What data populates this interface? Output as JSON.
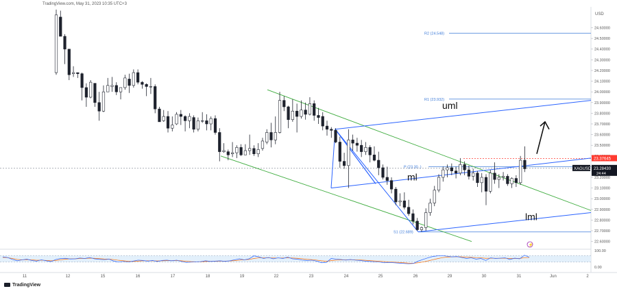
{
  "header": {
    "source": "TradingView.com, May 31, 2023 10:35 UTC+3"
  },
  "brand": {
    "label": "TradingView",
    "icon": "tradingview-logo-icon"
  },
  "colors": {
    "candle": "#1e222d",
    "channel": "#3cab3c",
    "pitchfork": "#2962ff",
    "pivot": "#3d7bd9",
    "resistance": "#ff3b30",
    "price_label_bg": "#131722",
    "resistance_label_bg": "#ff3b30",
    "rsi_line": "#2962ff",
    "rsi_signal": "#ff6d00",
    "rsi_band": "#e3f0fb"
  },
  "chart_data": {
    "type": "candlestick",
    "symbol": "XAGUSD",
    "currency": "USD",
    "y_ticks": [
      "24.60000",
      "24.50000",
      "24.40000",
      "24.30000",
      "24.20000",
      "24.10000",
      "24.00000",
      "23.90000",
      "23.80000",
      "23.70000",
      "23.60000",
      "23.50000",
      "23.40000",
      "23.30000",
      "23.20000",
      "23.10000",
      "23.00000",
      "22.90000",
      "22.80000",
      "22.70000",
      "22.60000"
    ],
    "ylim": [
      22.54,
      24.77
    ],
    "x_ticks": [
      "11",
      "12",
      "15",
      "16",
      "17",
      "18",
      "19",
      "22",
      "23",
      "24",
      "25",
      "26",
      "29",
      "30",
      "31",
      "Jun",
      "2"
    ],
    "current_price": {
      "label": "XAGUSD",
      "value": "23.28430",
      "countdown": "24:44",
      "numeric": 23.2843
    },
    "resistance_price": {
      "value": "23.37645",
      "numeric": 23.37645
    },
    "pivots": [
      {
        "label": "R2 (24.548)",
        "value": 24.548
      },
      {
        "label": "R1 (23.932)",
        "value": 23.932
      },
      {
        "label": "P (23.30..)",
        "value": 23.3
      },
      {
        "label": "S1 (22.689)",
        "value": 22.689
      }
    ],
    "annotations": {
      "upper_median": "uml",
      "median": "ml",
      "lower_median": "lml"
    },
    "candles": [
      [
        0,
        24.18,
        24.77,
        24.16,
        24.72
      ],
      [
        1,
        24.7,
        24.76,
        24.52,
        24.52
      ],
      [
        2,
        24.52,
        24.54,
        24.26,
        24.4
      ],
      [
        3,
        24.4,
        24.4,
        24.11,
        24.16
      ],
      [
        4,
        24.17,
        24.24,
        24.14,
        24.18
      ],
      [
        5,
        24.18,
        24.18,
        24.13,
        24.17
      ],
      [
        6,
        24.17,
        24.18,
        23.92,
        24.04
      ],
      [
        7,
        24.04,
        24.08,
        23.86,
        23.95
      ],
      [
        8,
        23.95,
        24.11,
        23.94,
        24.09
      ],
      [
        9,
        24.08,
        24.08,
        23.86,
        23.9
      ],
      [
        10,
        23.9,
        24.0,
        23.73,
        23.82
      ],
      [
        11,
        23.82,
        24.06,
        23.81,
        24.0
      ],
      [
        12,
        24.0,
        24.13,
        24.0,
        24.06
      ],
      [
        13,
        24.05,
        24.14,
        24.0,
        24.06
      ],
      [
        14,
        24.06,
        24.09,
        23.97,
        24.0
      ],
      [
        15,
        24.0,
        24.04,
        23.93,
        24.04
      ],
      [
        16,
        24.04,
        24.16,
        24.02,
        24.13
      ],
      [
        17,
        24.12,
        24.17,
        23.99,
        24.06
      ],
      [
        18,
        24.06,
        24.21,
        24.04,
        24.18
      ],
      [
        19,
        24.18,
        24.21,
        24.07,
        24.09
      ],
      [
        20,
        24.09,
        24.1,
        24.03,
        24.07
      ],
      [
        21,
        24.07,
        24.08,
        23.96,
        24.05
      ],
      [
        22,
        24.05,
        24.13,
        23.98,
        24.05
      ],
      [
        23,
        24.05,
        24.07,
        23.8,
        23.84
      ],
      [
        24,
        23.84,
        23.86,
        23.72,
        23.72
      ],
      [
        25,
        23.73,
        23.83,
        23.72,
        23.77
      ],
      [
        26,
        23.77,
        23.82,
        23.62,
        23.66
      ],
      [
        27,
        23.66,
        23.77,
        23.63,
        23.69
      ],
      [
        28,
        23.7,
        23.81,
        23.69,
        23.79
      ],
      [
        29,
        23.79,
        23.83,
        23.69,
        23.77
      ],
      [
        30,
        23.77,
        23.78,
        23.63,
        23.73
      ],
      [
        31,
        23.73,
        23.8,
        23.66,
        23.77
      ],
      [
        32,
        23.76,
        23.78,
        23.62,
        23.65
      ],
      [
        33,
        23.65,
        23.76,
        23.63,
        23.73
      ],
      [
        34,
        23.73,
        23.81,
        23.71,
        23.73
      ],
      [
        35,
        23.73,
        23.79,
        23.64,
        23.7
      ],
      [
        36,
        23.7,
        23.77,
        23.64,
        23.75
      ],
      [
        37,
        23.75,
        23.78,
        23.6,
        23.62
      ],
      [
        38,
        23.62,
        23.66,
        23.35,
        23.44
      ],
      [
        39,
        23.44,
        23.52,
        23.43,
        23.45
      ],
      [
        40,
        23.44,
        23.46,
        23.36,
        23.41
      ],
      [
        41,
        23.42,
        23.53,
        23.39,
        23.43
      ],
      [
        42,
        23.43,
        23.5,
        23.38,
        23.48
      ],
      [
        43,
        23.48,
        23.51,
        23.4,
        23.41
      ],
      [
        44,
        23.41,
        23.51,
        23.41,
        23.45
      ],
      [
        45,
        23.45,
        23.6,
        23.41,
        23.47
      ],
      [
        46,
        23.47,
        23.5,
        23.4,
        23.42
      ],
      [
        47,
        23.42,
        23.52,
        23.39,
        23.46
      ],
      [
        48,
        23.47,
        23.57,
        23.45,
        23.54
      ],
      [
        49,
        23.53,
        23.65,
        23.51,
        23.62
      ],
      [
        50,
        23.62,
        23.71,
        23.48,
        23.55
      ],
      [
        51,
        23.55,
        23.77,
        23.51,
        23.62
      ],
      [
        52,
        23.62,
        24.0,
        23.61,
        23.92
      ],
      [
        53,
        23.92,
        23.96,
        23.82,
        23.86
      ],
      [
        54,
        23.86,
        23.87,
        23.66,
        23.74
      ],
      [
        55,
        23.74,
        23.93,
        23.72,
        23.82
      ],
      [
        56,
        23.82,
        23.89,
        23.62,
        23.77
      ],
      [
        57,
        23.77,
        23.92,
        23.75,
        23.83
      ],
      [
        58,
        23.83,
        23.9,
        23.74,
        23.79
      ],
      [
        59,
        23.79,
        23.95,
        23.78,
        23.89
      ],
      [
        60,
        23.89,
        23.92,
        23.73,
        23.78
      ],
      [
        61,
        23.78,
        23.85,
        23.7,
        23.76
      ],
      [
        62,
        23.77,
        23.81,
        23.64,
        23.68
      ],
      [
        63,
        23.68,
        23.73,
        23.59,
        23.65
      ],
      [
        64,
        23.65,
        23.67,
        23.57,
        23.64
      ],
      [
        65,
        23.64,
        23.66,
        23.52,
        23.53
      ],
      [
        66,
        23.53,
        23.58,
        23.29,
        23.35
      ],
      [
        67,
        23.35,
        23.43,
        23.28,
        23.31
      ],
      [
        68,
        23.31,
        23.65,
        23.1,
        23.55
      ],
      [
        69,
        23.55,
        23.6,
        23.45,
        23.52
      ],
      [
        70,
        23.52,
        23.57,
        23.44,
        23.5
      ],
      [
        71,
        23.5,
        23.55,
        23.39,
        23.44
      ],
      [
        72,
        23.44,
        23.53,
        23.41,
        23.48
      ],
      [
        73,
        23.48,
        23.5,
        23.34,
        23.41
      ],
      [
        74,
        23.41,
        23.49,
        23.35,
        23.36
      ],
      [
        75,
        23.36,
        23.44,
        23.22,
        23.29
      ],
      [
        76,
        23.29,
        23.32,
        23.18,
        23.2
      ],
      [
        77,
        23.2,
        23.3,
        23.13,
        23.17
      ],
      [
        78,
        23.17,
        23.2,
        23.05,
        23.09
      ],
      [
        79,
        23.09,
        23.11,
        22.94,
        22.97
      ],
      [
        80,
        22.97,
        23.05,
        22.93,
        22.98
      ],
      [
        81,
        22.98,
        23.06,
        22.9,
        22.92
      ],
      [
        82,
        22.92,
        22.99,
        22.84,
        22.86
      ],
      [
        83,
        22.86,
        22.9,
        22.76,
        22.79
      ],
      [
        84,
        22.79,
        22.82,
        22.7,
        22.71
      ],
      [
        85,
        22.71,
        22.74,
        22.69,
        22.73
      ],
      [
        86,
        22.73,
        22.91,
        22.7,
        22.87
      ],
      [
        87,
        22.87,
        23.0,
        22.84,
        22.96
      ],
      [
        88,
        22.96,
        23.12,
        22.93,
        23.08
      ],
      [
        89,
        23.08,
        23.23,
        23.06,
        23.2
      ],
      [
        90,
        23.2,
        23.3,
        23.16,
        23.27
      ],
      [
        91,
        23.27,
        23.32,
        23.2,
        23.29
      ],
      [
        92,
        23.29,
        23.33,
        23.22,
        23.26
      ],
      [
        93,
        23.26,
        23.3,
        23.19,
        23.24
      ],
      [
        94,
        23.24,
        23.38,
        23.22,
        23.32
      ],
      [
        95,
        23.32,
        23.35,
        23.22,
        23.27
      ],
      [
        96,
        23.27,
        23.31,
        23.18,
        23.21
      ],
      [
        97,
        23.21,
        23.28,
        23.17,
        23.24
      ],
      [
        98,
        23.24,
        23.26,
        23.11,
        23.15
      ],
      [
        99,
        23.15,
        23.24,
        23.06,
        23.2
      ],
      [
        100,
        23.2,
        23.23,
        22.94,
        23.07
      ],
      [
        101,
        23.07,
        23.27,
        23.05,
        23.24
      ],
      [
        102,
        23.24,
        23.34,
        23.14,
        23.18
      ],
      [
        103,
        23.18,
        23.23,
        23.1,
        23.2
      ],
      [
        104,
        23.2,
        23.25,
        23.17,
        23.21
      ],
      [
        105,
        23.21,
        23.23,
        23.12,
        23.14
      ],
      [
        106,
        23.14,
        23.2,
        23.1,
        23.19
      ],
      [
        107,
        23.19,
        23.22,
        23.11,
        23.15
      ],
      [
        108,
        23.15,
        23.4,
        23.13,
        23.36
      ],
      [
        109,
        23.36,
        23.49,
        23.25,
        23.28
      ]
    ],
    "rsi": {
      "y_ticks": [
        "100.00",
        "0.00"
      ],
      "ylim": [
        0,
        100
      ],
      "band": [
        30,
        70
      ],
      "values": [
        62,
        58,
        46,
        38,
        44,
        48,
        40,
        36,
        44,
        38,
        33,
        46,
        52,
        53,
        49,
        50,
        55,
        52,
        58,
        50,
        47,
        45,
        48,
        36,
        30,
        34,
        30,
        36,
        42,
        40,
        36,
        40,
        34,
        40,
        42,
        38,
        42,
        34,
        28,
        30,
        32,
        33,
        38,
        34,
        36,
        38,
        35,
        38,
        44,
        50,
        44,
        50,
        68,
        62,
        52,
        58,
        50,
        56,
        52,
        60,
        50,
        48,
        42,
        40,
        42,
        36,
        26,
        28,
        52,
        48,
        46,
        42,
        46,
        42,
        40,
        36,
        34,
        32,
        30,
        26,
        28,
        26,
        24,
        22,
        20,
        22,
        36,
        46,
        56,
        64,
        68,
        70,
        66,
        62,
        64,
        58,
        52,
        56,
        48,
        52,
        40,
        56,
        52,
        54,
        56,
        46,
        54,
        50,
        72,
        60
      ],
      "signal": [
        58,
        57,
        52,
        46,
        44,
        45,
        44,
        41,
        42,
        40,
        38,
        40,
        44,
        48,
        50,
        50,
        52,
        52,
        54,
        53,
        51,
        49,
        48,
        45,
        41,
        38,
        35,
        34,
        36,
        38,
        38,
        38,
        37,
        38,
        39,
        39,
        40,
        38,
        35,
        33,
        32,
        32,
        34,
        35,
        35,
        36,
        36,
        37,
        39,
        42,
        44,
        46,
        52,
        56,
        56,
        56,
        55,
        55,
        55,
        56,
        55,
        53,
        50,
        47,
        45,
        42,
        38,
        35,
        39,
        42,
        43,
        44,
        44,
        44,
        43,
        41,
        39,
        37,
        35,
        33,
        31,
        30,
        28,
        26,
        24,
        23,
        26,
        31,
        37,
        44,
        51,
        57,
        61,
        62,
        63,
        62,
        60,
        59,
        57,
        56,
        53,
        54,
        53,
        53,
        54,
        52,
        52,
        52,
        57,
        58
      ]
    }
  }
}
